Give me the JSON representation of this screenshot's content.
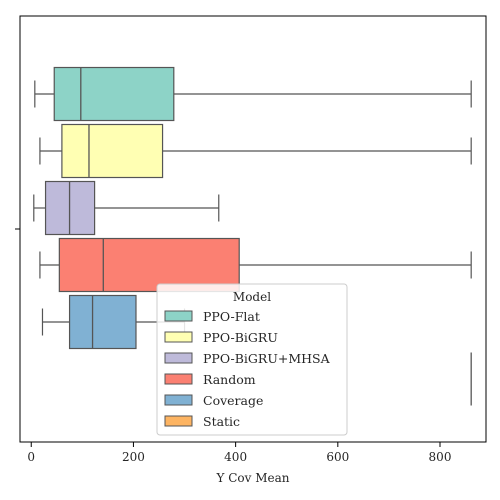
{
  "chart_data": {
    "type": "box",
    "orientation": "horizontal",
    "xlabel": "Y Cov Mean",
    "xlim": [
      -22,
      890
    ],
    "xticks": [
      0,
      200,
      400,
      600,
      800
    ],
    "legend": {
      "title": "Model",
      "placement": "lower-center"
    },
    "series": [
      {
        "name": "PPO-Flat",
        "color": "#8dd3c7",
        "whisker_low": 7,
        "q1": 45,
        "median": 97,
        "q3": 279,
        "whisker_high": 861
      },
      {
        "name": "PPO-BiGRU",
        "color": "#ffffb3",
        "whisker_low": 17,
        "q1": 60,
        "median": 113,
        "q3": 257,
        "whisker_high": 861
      },
      {
        "name": "PPO-BiGRU+MHSA",
        "color": "#bebada",
        "whisker_low": 5,
        "q1": 28,
        "median": 75,
        "q3": 124,
        "whisker_high": 367
      },
      {
        "name": "Random",
        "color": "#fb8072",
        "whisker_low": 17,
        "q1": 55,
        "median": 141,
        "q3": 407,
        "whisker_high": 861
      },
      {
        "name": "Coverage",
        "color": "#80b1d3",
        "whisker_low": 22,
        "q1": 75,
        "median": 120,
        "q3": 205,
        "whisker_high": 300
      },
      {
        "name": "Static",
        "color": "#fdb462",
        "whisker_low": 861,
        "q1": 861,
        "median": 861,
        "q3": 861,
        "whisker_high": 861
      }
    ],
    "grid": false
  }
}
